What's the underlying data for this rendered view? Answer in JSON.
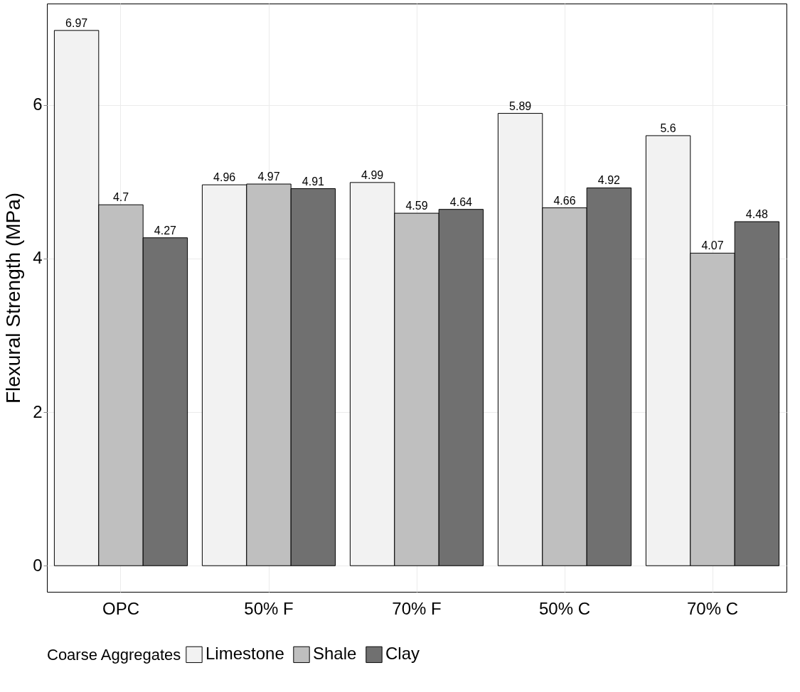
{
  "chart_data": {
    "type": "bar",
    "ylabel": "Flexural Strength (MPa)",
    "legend_title": "Coarse Aggregates",
    "categories": [
      "OPC",
      "50% F",
      "70% F",
      "50% C",
      "70% C"
    ],
    "series": [
      {
        "name": "Limestone",
        "color": "#f2f2f2",
        "values": [
          6.97,
          4.96,
          4.99,
          5.89,
          5.6
        ]
      },
      {
        "name": "Shale",
        "color": "#bfbfbf",
        "values": [
          4.7,
          4.97,
          4.59,
          4.66,
          4.07
        ]
      },
      {
        "name": "Clay",
        "color": "#707070",
        "values": [
          4.27,
          4.91,
          4.64,
          4.92,
          4.48
        ]
      }
    ],
    "ylim": [
      -0.34,
      7.32
    ],
    "yticks": [
      0,
      2,
      4,
      6
    ],
    "grid": true,
    "legend": "bottom",
    "data_labels": true
  }
}
